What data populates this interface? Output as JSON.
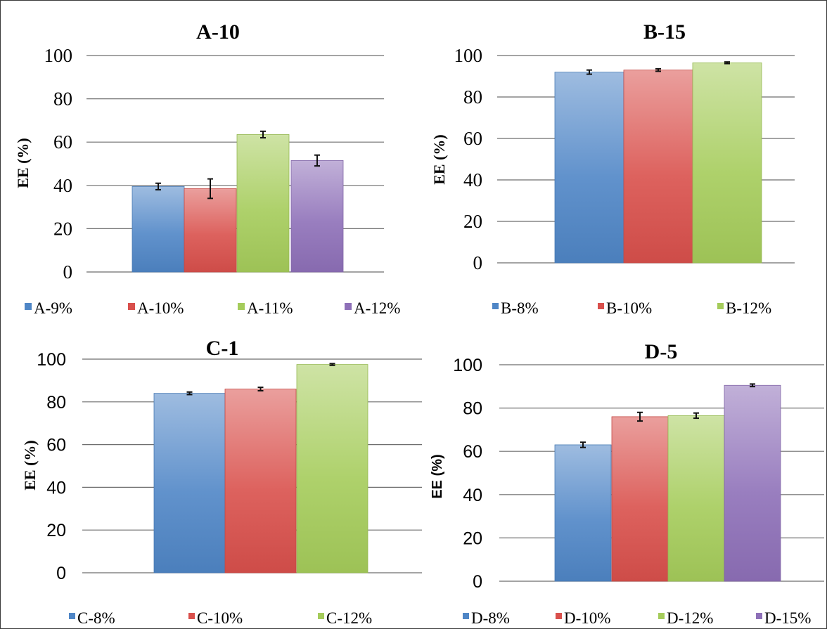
{
  "colors": {
    "blue": "#4f86c6",
    "red": "#d9504c",
    "green": "#a5cc5b",
    "purple": "#8e70b8"
  },
  "chart_data": [
    {
      "type": "bar",
      "title": "A-10",
      "ylabel": "EE (%)",
      "ylim": [
        0,
        100
      ],
      "yticks": [
        0,
        20,
        40,
        60,
        80,
        100
      ],
      "grid": true,
      "legend": "bottom",
      "series": [
        {
          "name": "A-9%",
          "value": 39.5,
          "error": 1.5,
          "color": "blue"
        },
        {
          "name": "A-10%",
          "value": 38.5,
          "error": 4.5,
          "color": "red"
        },
        {
          "name": "A-11%",
          "value": 63.5,
          "error": 1.5,
          "color": "green"
        },
        {
          "name": "A-12%",
          "value": 51.5,
          "error": 2.5,
          "color": "purple"
        }
      ]
    },
    {
      "type": "bar",
      "title": "B-15",
      "ylabel": "EE (%)",
      "ylim": [
        0,
        100
      ],
      "yticks": [
        0,
        20,
        40,
        60,
        80,
        100
      ],
      "grid": true,
      "legend": "bottom",
      "series": [
        {
          "name": "B-8%",
          "value": 92,
          "error": 1,
          "color": "blue"
        },
        {
          "name": "B-10%",
          "value": 93,
          "error": 0.6,
          "color": "red"
        },
        {
          "name": "B-12%",
          "value": 96.5,
          "error": 0.4,
          "color": "green"
        }
      ]
    },
    {
      "type": "bar",
      "title": "C-1",
      "ylabel": "EE (%)",
      "ylim": [
        0,
        100
      ],
      "yticks": [
        0,
        20,
        40,
        60,
        80,
        100
      ],
      "grid": true,
      "legend": "bottom",
      "series": [
        {
          "name": "C-8%",
          "value": 84,
          "error": 0.6,
          "color": "blue"
        },
        {
          "name": "C-10%",
          "value": 86,
          "error": 0.8,
          "color": "red"
        },
        {
          "name": "C-12%",
          "value": 97.5,
          "error": 0.4,
          "color": "green"
        }
      ]
    },
    {
      "type": "bar",
      "title": "D-5",
      "ylabel": "EE (%)",
      "ylim": [
        0,
        100
      ],
      "yticks": [
        0,
        20,
        40,
        60,
        80,
        100
      ],
      "grid": true,
      "legend": "bottom",
      "series": [
        {
          "name": "D-8%",
          "value": 63,
          "error": 1.2,
          "color": "blue"
        },
        {
          "name": "D-10%",
          "value": 76,
          "error": 2,
          "color": "red"
        },
        {
          "name": "D-12%",
          "value": 76.5,
          "error": 1.2,
          "color": "green"
        },
        {
          "name": "D-15%",
          "value": 90.5,
          "error": 0.6,
          "color": "purple"
        }
      ]
    }
  ]
}
